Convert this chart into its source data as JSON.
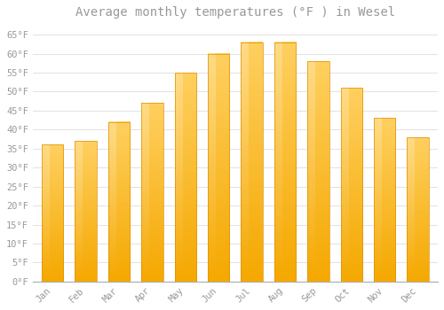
{
  "months": [
    "Jan",
    "Feb",
    "Mar",
    "Apr",
    "May",
    "Jun",
    "Jul",
    "Aug",
    "Sep",
    "Oct",
    "Nov",
    "Dec"
  ],
  "values": [
    36,
    37,
    42,
    47,
    55,
    60,
    63,
    63,
    58,
    51,
    43,
    38
  ],
  "bar_color_bottom": "#F5A800",
  "bar_color_top": "#FFD060",
  "bar_color_highlight": "#FFE090",
  "bar_edge_color": "#E09000",
  "title": "Average monthly temperatures (°F ) in Wesel",
  "ylim": [
    0,
    68
  ],
  "yticks": [
    0,
    5,
    10,
    15,
    20,
    25,
    30,
    35,
    40,
    45,
    50,
    55,
    60,
    65
  ],
  "ytick_labels": [
    "0°F",
    "5°F",
    "10°F",
    "15°F",
    "20°F",
    "25°F",
    "30°F",
    "35°F",
    "40°F",
    "45°F",
    "50°F",
    "55°F",
    "60°F",
    "65°F"
  ],
  "background_color": "#FFFFFF",
  "grid_color": "#DDDDDD",
  "title_fontsize": 10,
  "tick_fontsize": 7.5,
  "font_color": "#999999",
  "bar_width": 0.65
}
